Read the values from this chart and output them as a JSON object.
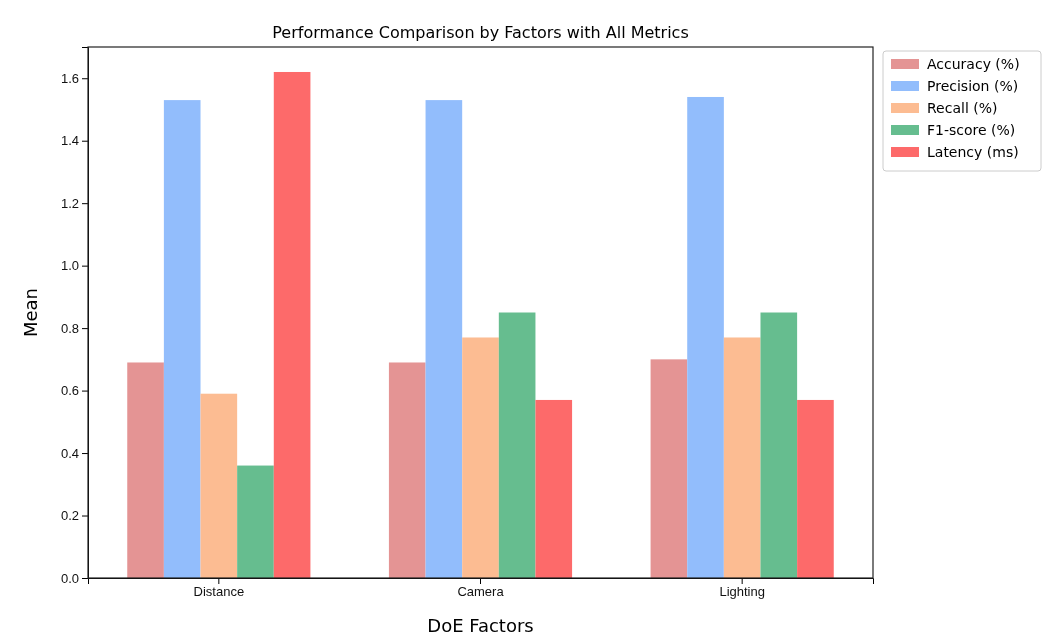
{
  "chart_data": {
    "type": "bar",
    "title": "Performance Comparison by Factors with All Metrics",
    "xlabel": "DoE Factors",
    "ylabel": "Mean",
    "categories": [
      "Distance",
      "Camera",
      "Lighting"
    ],
    "series": [
      {
        "name": "Accuracy (%)",
        "color": "#e49494",
        "values": [
          0.69,
          0.69,
          0.7
        ]
      },
      {
        "name": "Precision (%)",
        "color": "#92bdfc",
        "values": [
          1.53,
          1.53,
          1.54
        ]
      },
      {
        "name": "Recall (%)",
        "color": "#fcbc92",
        "values": [
          0.59,
          0.77,
          0.77
        ]
      },
      {
        "name": "F1-score (%)",
        "color": "#66bd8f",
        "values": [
          0.36,
          0.85,
          0.85
        ]
      },
      {
        "name": "Latency (ms)",
        "color": "#fd6a6a",
        "values": [
          1.62,
          0.57,
          0.57
        ]
      }
    ],
    "ylim": [
      0,
      1.7
    ],
    "yticks": [
      {
        "value": 0,
        "label": "0.0"
      },
      0.2,
      0.4,
      0.6,
      0.8,
      {
        "value": 1,
        "label": "1.0"
      },
      1.2,
      1.4,
      1.6
    ],
    "legend": "top right"
  }
}
